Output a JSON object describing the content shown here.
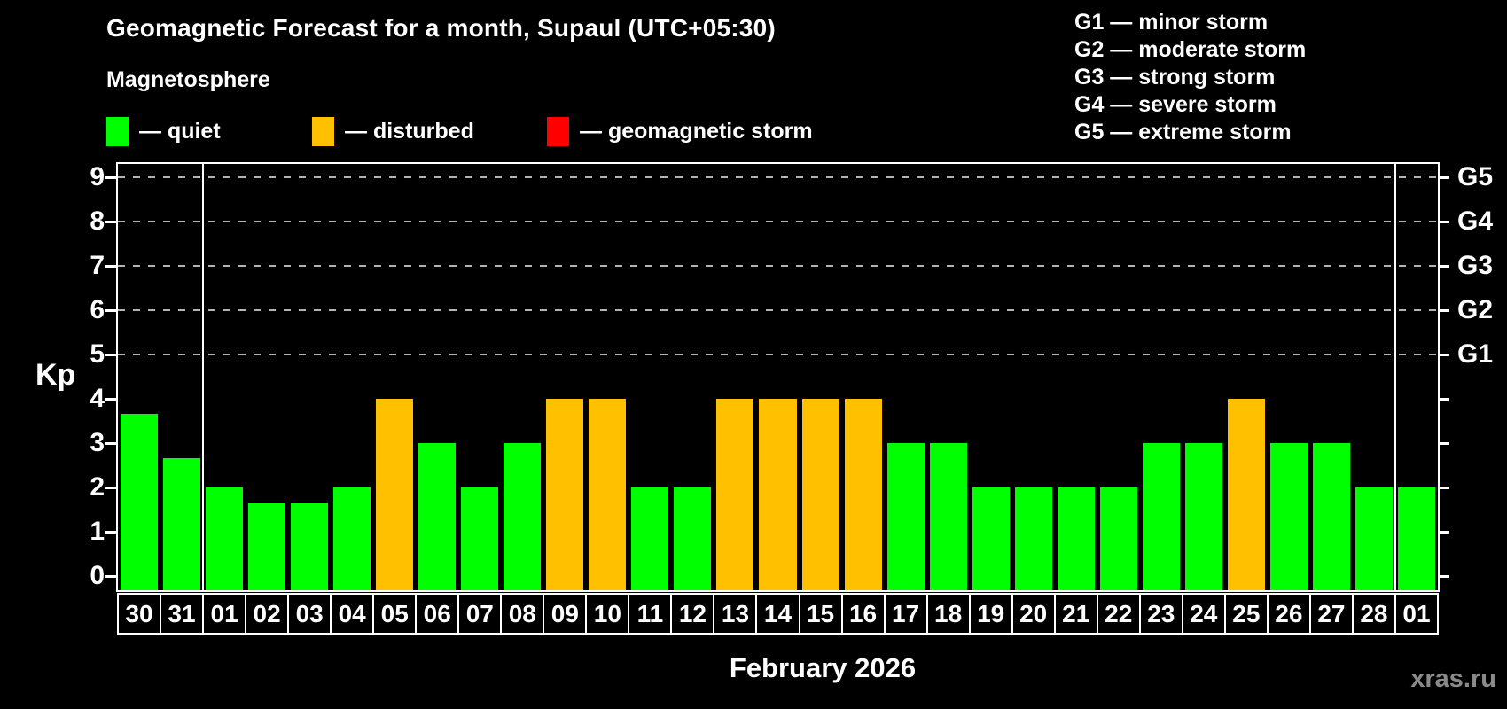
{
  "title": "Geomagnetic Forecast for a month, Supaul (UTC+05:30)",
  "subtitle": "Magnetosphere",
  "legend": {
    "items": [
      {
        "name": "quiet",
        "label": "— quiet",
        "color": "#00ff00"
      },
      {
        "name": "disturbed",
        "label": "— disturbed",
        "color": "#ffc000"
      },
      {
        "name": "geomagnetic-storm",
        "label": "— geomagnetic storm",
        "color": "#ff0000"
      }
    ]
  },
  "g_scale_legend": {
    "items": [
      {
        "label": "G1 — minor storm"
      },
      {
        "label": "G2 — moderate storm"
      },
      {
        "label": "G3 — strong storm"
      },
      {
        "label": "G4 — severe storm"
      },
      {
        "label": "G5 — extreme storm"
      }
    ]
  },
  "watermark": "xras.ru",
  "chart_data": {
    "type": "bar",
    "title": "Geomagnetic Forecast for a month, Supaul (UTC+05:30)",
    "xlabel": "February 2026",
    "ylabel": "Kp",
    "ylim": [
      0,
      9
    ],
    "y_ticks": [
      0,
      1,
      2,
      3,
      4,
      5,
      6,
      7,
      8,
      9
    ],
    "grid": "dashed horizontal lines at Kp 5-9 only",
    "legend_position": "top-left",
    "g_levels": [
      {
        "kp": 5,
        "label": "G1"
      },
      {
        "kp": 6,
        "label": "G2"
      },
      {
        "kp": 7,
        "label": "G3"
      },
      {
        "kp": 8,
        "label": "G4"
      },
      {
        "kp": 9,
        "label": "G5"
      }
    ],
    "categories": [
      "30",
      "31",
      "01",
      "02",
      "03",
      "04",
      "05",
      "06",
      "07",
      "08",
      "09",
      "10",
      "11",
      "12",
      "13",
      "14",
      "15",
      "16",
      "17",
      "18",
      "19",
      "20",
      "21",
      "22",
      "23",
      "24",
      "25",
      "26",
      "27",
      "28",
      "01"
    ],
    "values": [
      3.67,
      2.67,
      2,
      1.67,
      1.67,
      2,
      4,
      3,
      2,
      3,
      4,
      4,
      2,
      2,
      4,
      4,
      4,
      4,
      3,
      3,
      2,
      2,
      2,
      2,
      3,
      3,
      4,
      3,
      3,
      2,
      2
    ],
    "statuses": [
      "quiet",
      "quiet",
      "quiet",
      "quiet",
      "quiet",
      "quiet",
      "disturbed",
      "quiet",
      "quiet",
      "quiet",
      "disturbed",
      "disturbed",
      "quiet",
      "quiet",
      "disturbed",
      "disturbed",
      "disturbed",
      "disturbed",
      "quiet",
      "quiet",
      "quiet",
      "quiet",
      "quiet",
      "quiet",
      "quiet",
      "quiet",
      "disturbed",
      "quiet",
      "quiet",
      "quiet",
      "quiet"
    ],
    "colors": {
      "quiet": "#00ff00",
      "disturbed": "#ffc000",
      "geomagnetic-storm": "#ff0000"
    },
    "month_separators_after_index": [
      1,
      29
    ]
  }
}
